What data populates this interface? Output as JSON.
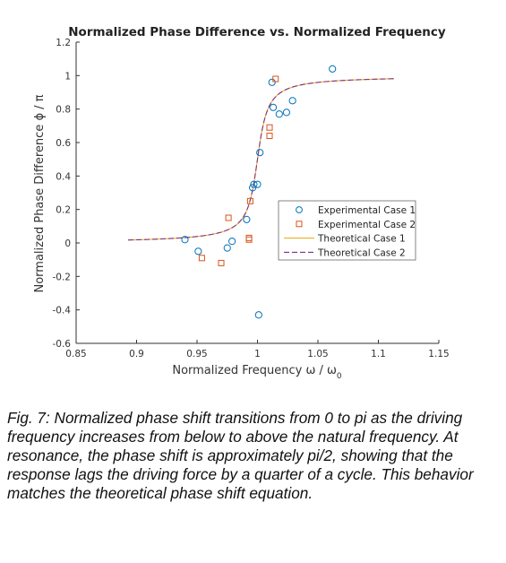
{
  "chart_data": {
    "type": "scatter",
    "title": "Normalized Phase Difference vs. Normalized Frequency",
    "xlabel": "Normalized Frequency ω / ω",
    "xlabel_sub": "0",
    "ylabel": "Normalized Phase Difference ϕ / π",
    "xlim": [
      0.85,
      1.15
    ],
    "ylim": [
      -0.6,
      1.2
    ],
    "xticks": [
      0.85,
      0.9,
      0.95,
      1,
      1.05,
      1.1,
      1.15
    ],
    "xtick_labels": [
      "0.85",
      "0.9",
      "0.95",
      "1",
      "1.05",
      "1.1",
      "1.15"
    ],
    "yticks": [
      -0.6,
      -0.4,
      -0.2,
      0,
      0.2,
      0.4,
      0.6,
      0.8,
      1,
      1.2
    ],
    "ytick_labels": [
      "-0.6",
      "-0.4",
      "-0.2",
      "0",
      "0.2",
      "0.4",
      "0.6",
      "0.8",
      "1",
      "1.2"
    ],
    "grid": false,
    "legend_position": "center-right",
    "series": [
      {
        "name": "Experimental Case 1",
        "kind": "scatter",
        "marker": "circle",
        "color": "#0072BD",
        "x": [
          0.94,
          0.951,
          0.975,
          0.979,
          0.991,
          0.996,
          0.997,
          1.0,
          1.002,
          1.001,
          1.012,
          1.013,
          1.018,
          1.024,
          1.029,
          1.062
        ],
        "y": [
          0.02,
          -0.05,
          -0.03,
          0.01,
          0.14,
          0.33,
          0.35,
          0.35,
          0.54,
          -0.43,
          0.96,
          0.81,
          0.77,
          0.78,
          0.85,
          1.04
        ]
      },
      {
        "name": "Experimental Case 2",
        "kind": "scatter",
        "marker": "square",
        "color": "#D95319",
        "x": [
          0.954,
          0.97,
          0.976,
          0.993,
          0.993,
          0.994,
          1.01,
          1.01,
          1.015
        ],
        "y": [
          -0.09,
          -0.12,
          0.15,
          0.03,
          0.02,
          0.25,
          0.69,
          0.64,
          0.98
        ]
      },
      {
        "name": "Theoretical Case 1",
        "kind": "line",
        "dash": "solid",
        "color": "#EDB120",
        "model": {
          "center": 1.0,
          "q": 80,
          "x_range": [
            0.893,
            1.113
          ]
        }
      },
      {
        "name": "Theoretical Case 2",
        "kind": "line",
        "dash": "dashed",
        "color": "#7E2F8E",
        "model": {
          "center": 1.0,
          "q": 80,
          "x_range": [
            0.893,
            1.113
          ]
        }
      }
    ]
  },
  "caption": "Fig. 7: Normalized phase shift transitions from 0 to pi as the driving frequency increases from below to above the natural frequency. At resonance, the phase shift is approximately pi/2, showing that the response lags the driving force by a quarter of a cycle. This behavior matches the theoretical phase shift equation."
}
